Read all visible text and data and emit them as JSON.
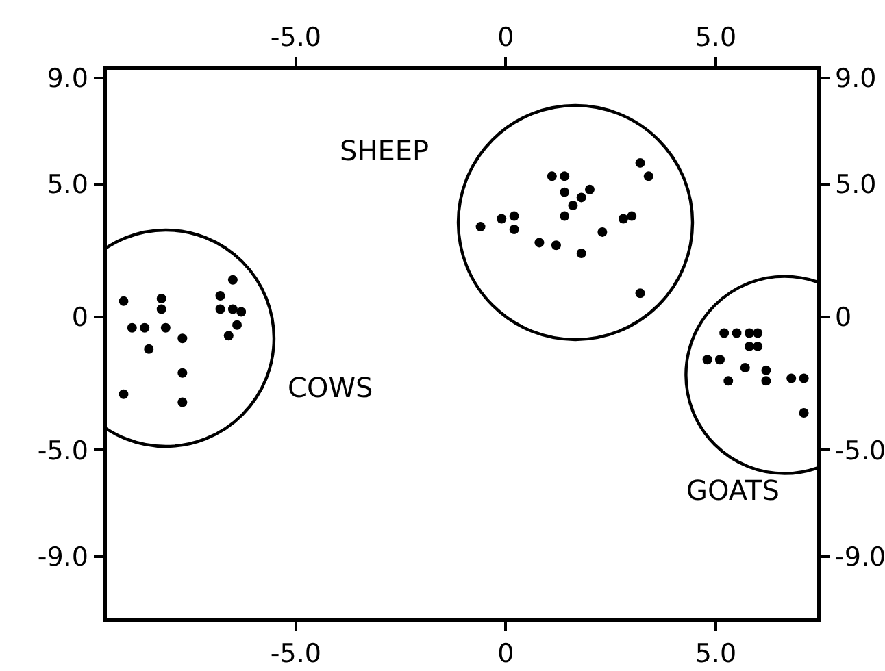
{
  "chart_data": {
    "type": "scatter",
    "marker": "circle",
    "xlim": [
      -9.5,
      7.4
    ],
    "ylim": [
      -11.3,
      9.3
    ],
    "xticks": [
      {
        "value": -5,
        "label": "-5.0"
      },
      0,
      {
        "value": 5,
        "label": "5.0"
      }
    ],
    "x2lim": [
      -9.5,
      7.4
    ],
    "x2ticks": [
      {
        "value": -5,
        "label": "-5.0"
      },
      0,
      {
        "value": 5,
        "label": "5.0"
      }
    ],
    "yticks": [
      {
        "value": 9,
        "label": "9.0"
      },
      {
        "value": 5,
        "label": "5.0"
      },
      0,
      {
        "value": -5,
        "label": "-5.0"
      },
      {
        "value": -9,
        "label": "-9.0"
      }
    ],
    "y2lim": [
      -11.3,
      9.3
    ],
    "y2ticks": [
      {
        "value": 9,
        "label": "9.0"
      },
      {
        "value": 5,
        "label": "5.0"
      },
      0,
      {
        "value": -5,
        "label": "-5.0"
      },
      {
        "value": -9,
        "label": "-9.0"
      }
    ],
    "series": [
      {
        "name": "COWS",
        "color": "#000000",
        "x": [
          -9.1,
          -8.2,
          -8.2,
          -8.9,
          -8.6,
          -8.1,
          -7.7,
          -8.5,
          -7.7,
          -9.1,
          -7.7,
          -6.5,
          -6.8,
          -6.8,
          -6.5,
          -6.3,
          -6.4,
          -6.6
        ],
        "values": [
          0.6,
          0.7,
          0.3,
          -0.4,
          -0.4,
          -0.4,
          -0.8,
          -1.2,
          -2.1,
          -2.9,
          -3.2,
          1.4,
          0.8,
          0.3,
          0.3,
          0.2,
          -0.3,
          -0.7
        ]
      },
      {
        "name": "SHEEP",
        "color": "#000000",
        "x": [
          -0.6,
          -0.1,
          0.2,
          0.2,
          0.8,
          1.2,
          1.1,
          1.4,
          1.4,
          1.6,
          1.8,
          2.0,
          1.4,
          1.8,
          2.3,
          2.8,
          3.0,
          3.2,
          3.4,
          3.2
        ],
        "values": [
          3.4,
          3.7,
          3.8,
          3.3,
          2.8,
          2.7,
          5.3,
          5.3,
          4.7,
          4.2,
          4.5,
          4.8,
          3.8,
          2.4,
          3.2,
          3.7,
          3.8,
          5.8,
          5.3,
          0.9
        ]
      },
      {
        "name": "GOATS",
        "color": "#000000",
        "x": [
          5.2,
          5.5,
          5.8,
          5.8,
          6.0,
          6.0,
          4.8,
          5.1,
          5.7,
          6.2,
          6.2,
          5.3,
          6.8,
          7.1,
          7.1
        ],
        "values": [
          -0.6,
          -0.6,
          -0.6,
          -1.1,
          -0.6,
          -1.1,
          -1.6,
          -1.6,
          -1.9,
          -2.0,
          -2.4,
          -2.4,
          -2.3,
          -2.3,
          -3.6
        ]
      }
    ]
  }
}
